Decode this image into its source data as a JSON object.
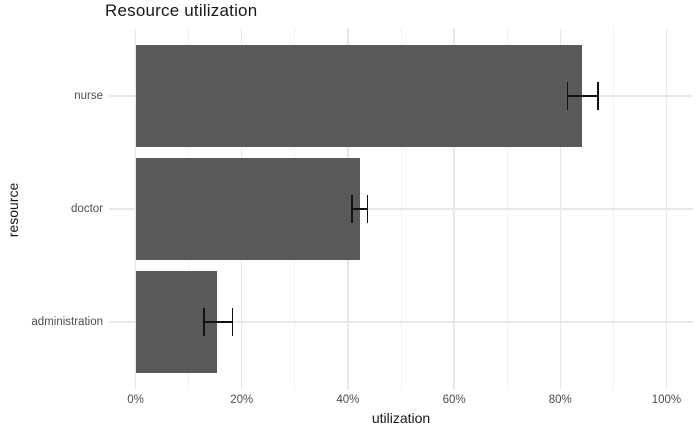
{
  "chart_data": {
    "type": "bar",
    "orientation": "horizontal",
    "title": "Resource utilization",
    "xlabel": "utilization",
    "ylabel": "resource",
    "categories": [
      "nurse",
      "doctor",
      "administration"
    ],
    "values": [
      84.1,
      42.3,
      15.4
    ],
    "error_low": [
      81.4,
      40.8,
      12.9
    ],
    "error_high": [
      87.1,
      43.7,
      18.3
    ],
    "x_ticks": [
      0,
      20,
      40,
      60,
      80,
      100
    ],
    "x_tick_labels": [
      "0%",
      "20%",
      "40%",
      "60%",
      "80%",
      "100%"
    ],
    "x_minor_ticks": [
      10,
      30,
      50,
      70,
      90
    ],
    "xlim": [
      -5,
      105
    ],
    "grid": true,
    "legend": false,
    "colors": {
      "bar_fill": "#595959",
      "error_bar": "#111111",
      "grid_major": "#e7e7e7",
      "grid_minor": "#f1f1f1",
      "axis_text": "#4d4d4d",
      "title_text": "#181818",
      "background": "#ffffff"
    }
  }
}
